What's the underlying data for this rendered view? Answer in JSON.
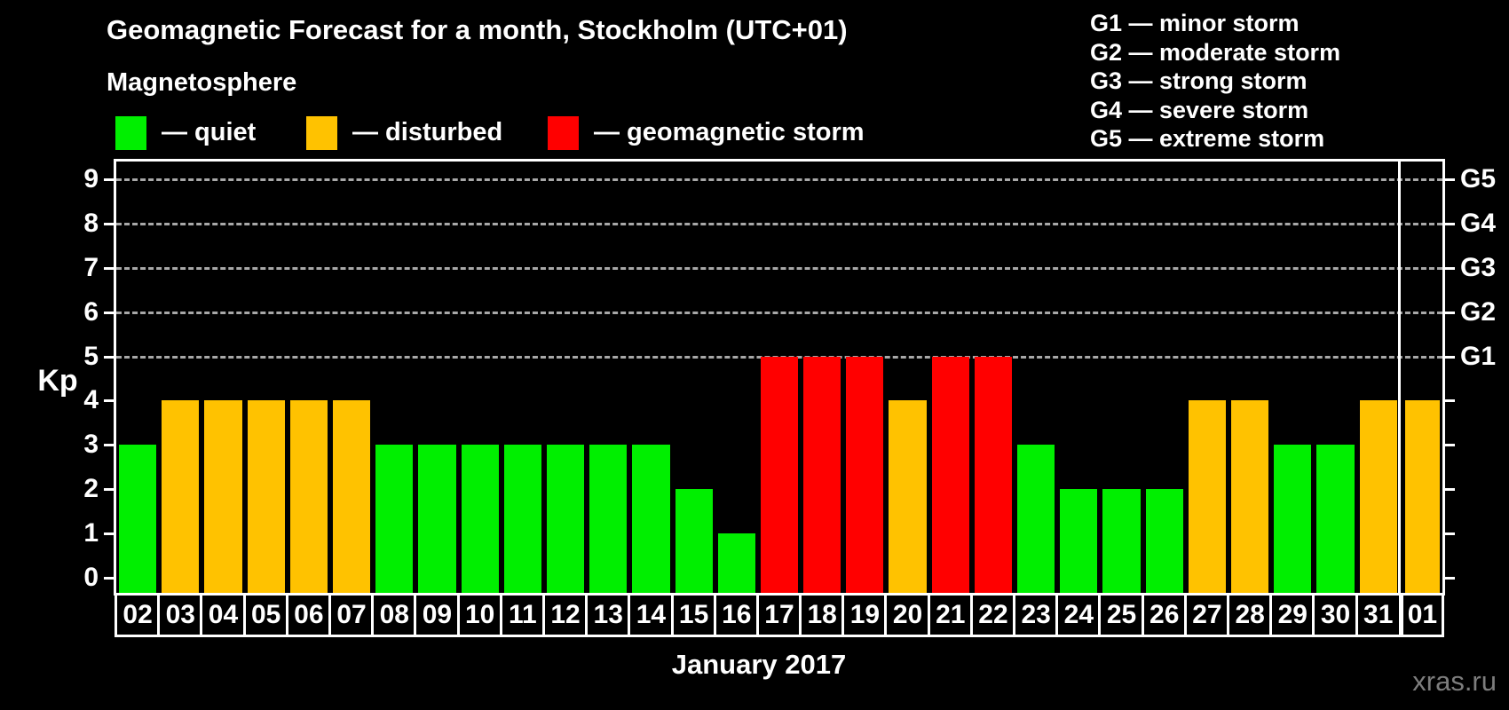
{
  "header": {
    "title": "Geomagnetic Forecast for a month, Stockholm (UTC+01)",
    "subtitle": "Magnetosphere"
  },
  "legend": {
    "items": [
      {
        "label": "— quiet",
        "status": "quiet"
      },
      {
        "label": "— disturbed",
        "status": "disturbed"
      },
      {
        "label": "— geomagnetic storm",
        "status": "storm"
      }
    ]
  },
  "g_legend": {
    "items": [
      "G1 — minor storm",
      "G2 — moderate storm",
      "G3 — strong storm",
      "G4 — severe storm",
      "G5 — extreme storm"
    ]
  },
  "colors": {
    "quiet": "#00ef00",
    "disturbed": "#ffc200",
    "storm": "#ff0000",
    "background": "#000000",
    "grid": "#a8a8a8",
    "axis": "#ffffff",
    "watermark": "#7d7d7d"
  },
  "chart_data": {
    "type": "bar",
    "title": "Geomagnetic Forecast for a month, Stockholm (UTC+01)",
    "xlabel": "January 2017",
    "ylabel": "Kp",
    "ylim": [
      0,
      9
    ],
    "yticks": [
      0,
      1,
      2,
      3,
      4,
      5,
      6,
      7,
      8,
      9
    ],
    "gridlines_at": [
      5,
      6,
      7,
      8,
      9
    ],
    "grid": "dashed, only at storm levels G1–G5",
    "legend_position": "top",
    "right_axis": [
      {
        "label": "G1",
        "kp": 5
      },
      {
        "label": "G2",
        "kp": 6
      },
      {
        "label": "G3",
        "kp": 7
      },
      {
        "label": "G4",
        "kp": 8
      },
      {
        "label": "G5",
        "kp": 9
      }
    ],
    "categories": [
      "02",
      "03",
      "04",
      "05",
      "06",
      "07",
      "08",
      "09",
      "10",
      "11",
      "12",
      "13",
      "14",
      "15",
      "16",
      "17",
      "18",
      "19",
      "20",
      "21",
      "22",
      "23",
      "24",
      "25",
      "26",
      "27",
      "28",
      "29",
      "30",
      "31",
      "01"
    ],
    "values": [
      3,
      4,
      4,
      4,
      4,
      4,
      3,
      3,
      3,
      3,
      3,
      3,
      3,
      2,
      1,
      5,
      5,
      5,
      4,
      5,
      5,
      3,
      2,
      2,
      2,
      4,
      4,
      3,
      3,
      4,
      4
    ],
    "statuses": [
      "quiet",
      "disturbed",
      "disturbed",
      "disturbed",
      "disturbed",
      "disturbed",
      "quiet",
      "quiet",
      "quiet",
      "quiet",
      "quiet",
      "quiet",
      "quiet",
      "quiet",
      "quiet",
      "storm",
      "storm",
      "storm",
      "disturbed",
      "storm",
      "storm",
      "quiet",
      "quiet",
      "quiet",
      "quiet",
      "disturbed",
      "disturbed",
      "quiet",
      "quiet",
      "disturbed",
      "disturbed"
    ],
    "month_separator_before_index": 30
  },
  "footer": {
    "xaxis_title": "January 2017",
    "watermark": "xras.ru"
  }
}
